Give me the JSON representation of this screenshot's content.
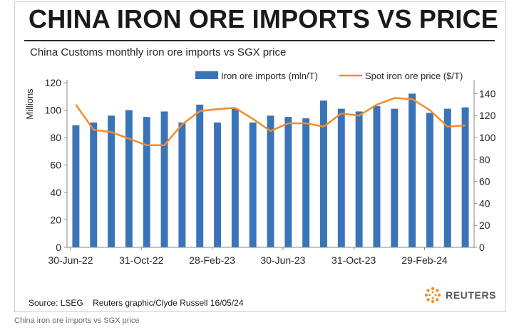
{
  "header": {
    "title": "CHINA IRON ORE IMPORTS VS PRICE",
    "subtitle": "China Customs monthly iron ore imports vs SGX price"
  },
  "footer": {
    "source": "Source: LSEG",
    "credit": "Reuters graphic/Clyde Russell 16/05/24",
    "logo_text": "REUTERS",
    "caption": "China iron ore imports vs SGX price"
  },
  "colors": {
    "bar": "#3a74b8",
    "line": "#f28c28",
    "title": "#1a1a1a",
    "axis": "#8a8a8a",
    "text": "#262626"
  },
  "chart_data": {
    "type": "bar",
    "categories": [
      "Jun-22",
      "Jul-22",
      "Aug-22",
      "Sep-22",
      "Oct-22",
      "Nov-22",
      "Dec-22",
      "Jan-23",
      "Feb-23",
      "Mar-23",
      "Apr-23",
      "May-23",
      "Jun-23",
      "Jul-23",
      "Aug-23",
      "Sep-23",
      "Oct-23",
      "Nov-23",
      "Dec-23",
      "Jan-24",
      "Feb-24",
      "Mar-24",
      "Apr-24"
    ],
    "x_tick_labels": [
      "30-Jun-22",
      "31-Oct-22",
      "28-Feb-23",
      "30-Jun-23",
      "31-Oct-23",
      "29-Feb-24"
    ],
    "x_tick_indices": [
      0,
      4,
      8,
      12,
      16,
      20
    ],
    "series": [
      {
        "name": "Iron ore imports (mln/T)",
        "type": "bar",
        "axis": "left",
        "values": [
          89,
          91,
          96,
          100,
          95,
          99,
          91,
          104,
          91,
          101,
          91,
          96,
          95,
          94,
          107,
          101,
          99,
          103,
          101,
          112,
          98,
          101,
          102
        ]
      },
      {
        "name": "Spot iron ore price ($/T)",
        "type": "line",
        "axis": "right",
        "values": [
          130,
          107,
          105,
          99,
          93,
          93,
          112,
          124,
          126,
          127,
          117,
          106,
          113,
          113,
          110,
          122,
          120,
          130,
          136,
          135,
          125,
          110,
          111
        ]
      }
    ],
    "ylabel": "Millions",
    "ylim": [
      0,
      120
    ],
    "yticks": [
      0,
      20,
      40,
      60,
      80,
      100,
      120
    ],
    "y2lim": [
      0,
      150
    ],
    "y2ticks": [
      0,
      20,
      40,
      60,
      80,
      100,
      120,
      140
    ],
    "legend": "top-right"
  }
}
